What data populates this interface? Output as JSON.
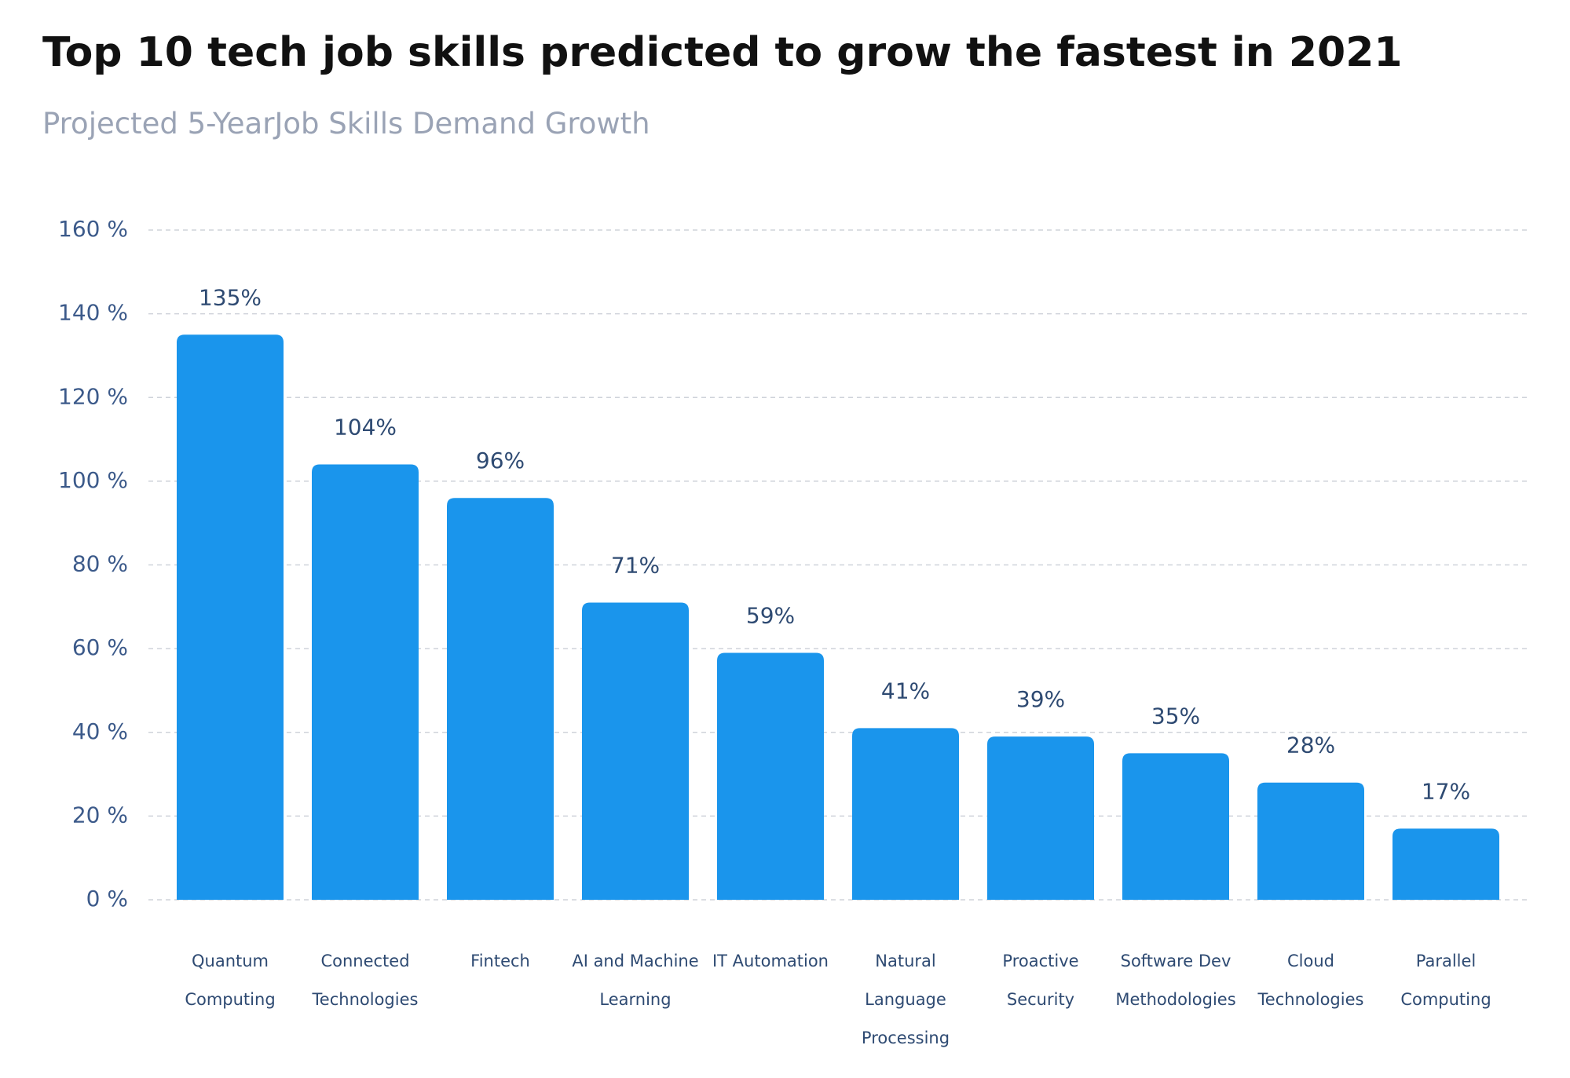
{
  "chart_data": {
    "type": "bar",
    "title": "Top 10 tech job skills predicted to grow the fastest in 2021",
    "subtitle": "Projected 5-YearJob Skills Demand Growth",
    "categories": [
      "Quantum Computing",
      "Connected Technologies",
      "Fintech",
      "AI and Machine Learning",
      "IT Automation",
      "Natural Language Processing",
      "Proactive Security",
      "Software Dev Methodologies",
      "Cloud Technologies",
      "Parallel Computing"
    ],
    "values": [
      135,
      104,
      96,
      71,
      59,
      41,
      39,
      35,
      28,
      17
    ],
    "value_labels": [
      "135%",
      "104%",
      "96%",
      "71%",
      "59%",
      "41%",
      "39%",
      "35%",
      "28%",
      "17%"
    ],
    "color": "#1a95ec",
    "ylim": [
      0,
      160
    ],
    "yticks": [
      {
        "value": 0,
        "label": "0 %"
      },
      {
        "value": 20,
        "label": "20 %"
      },
      {
        "value": 40,
        "label": "40 %"
      },
      {
        "value": 60,
        "label": "60 %"
      },
      {
        "value": 80,
        "label": "80 %"
      },
      {
        "value": 100,
        "label": "100 %"
      },
      {
        "value": 120,
        "label": "120 %"
      },
      {
        "value": 140,
        "label": "140 %"
      },
      {
        "value": 160,
        "label": "160 %"
      }
    ],
    "grid": true
  }
}
